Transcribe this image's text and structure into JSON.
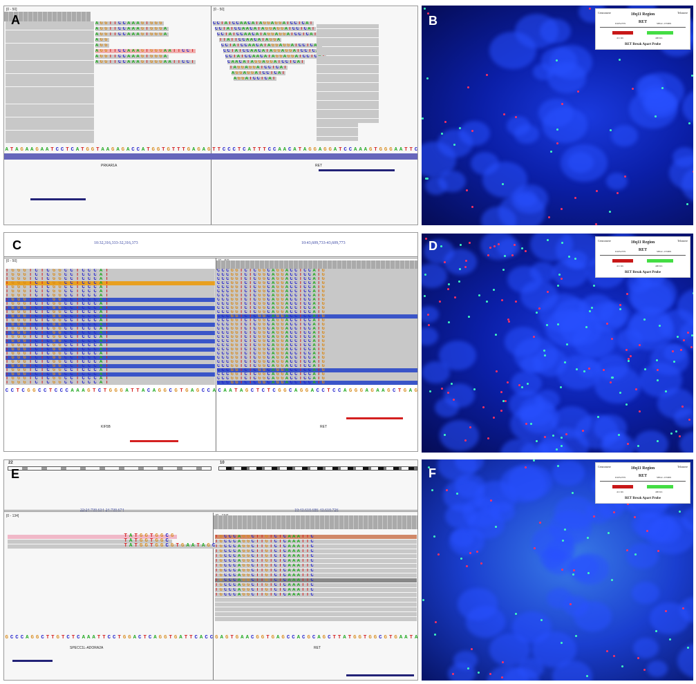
{
  "colors": {
    "A": "#1fa81f",
    "C": "#2222cc",
    "G": "#d88a1a",
    "T": "#d42020",
    "read": "#c8c8c8",
    "blue_read": "#3a55c8",
    "red_bar": "#d42020",
    "navy_bar": "#222277",
    "probe_red": "#c81818",
    "probe_green": "#44dd44",
    "fish_red": "#ff3060",
    "fish_green": "#40ffc0"
  },
  "panels": {
    "A": {
      "label": "A",
      "range_left": "[0 - 50]",
      "range_right": "[0 - 50]",
      "reference": "ATAGAAGAATCCTCATGGTAAGAGACCATGGTGTTTGAGAGTTCCCTCATTTCCAACATAGGAGGATCCAAAGTGGGAATTC",
      "gene_left": "PRKAR1A",
      "gene_right": "RET",
      "soft_left": [
        "AGGTTCCAAAGTGGG",
        "AGGTTCCAAAGTGGGA",
        "AGGTTCCAAAGTGGGA",
        "AGG",
        "AGG",
        "AGGTTCCAAAGTGGGAATTCCT",
        "AGGTTCCAAAGTGGGA",
        "AGGTTCCAAAGTGGGAATTCCT"
      ],
      "soft_right": [
        "CCTATCCAACATAGGAGGATCCTCAT",
        "CCTATCCAACATAGGAGGATCCTCAT",
        "CCTATCCAACATAGGAGGATCCTCAT",
        "TTATTCCAACATAGGA",
        "CCTATCCAACATAGGAGGATCCTCAT",
        "CCTATCCAACATAGGAGGATCCTCAT",
        "CCTATCCAACATAGGAGGATCCTCAT",
        "CAACATAGGAGGATCCTCAT",
        "TAGGAGGATCCTCAT",
        "AGGAGGATCCTCAT",
        "AGGATCCTCAT"
      ]
    },
    "B": {
      "label": "B"
    },
    "C": {
      "label": "C",
      "locus_left": "10:32,316,333-32,316,373",
      "locus_right": "10:43,609,733-43,609,773",
      "range_left": "[0 - 50]",
      "range_right": "[0 - 50]",
      "reference": "CCTCGGCCTCCCAAAGTCTGGGATTACAGGCGTGAGCCACAATAGCTCTCGGCAGGACCTCCAGGGAGAAGCTGAG",
      "gene_left": "KIF5B",
      "gene_right": "RET",
      "soft_left": "TGGGTCTCGGCCTCCCAT",
      "soft_right": "CCCGGTCTCGGCAGGACCTCCATG"
    },
    "D": {
      "label": "D"
    },
    "E": {
      "label": "E",
      "chrom_left": "22",
      "chrom_right": "10",
      "locus_left": "22:24,739,634-24,739,674",
      "locus_right": "10:43,610,686-43,610,726",
      "range_left": "[0 - 134]",
      "range_right": "[0 - 134]",
      "reference": "GCCCAGGCTTGTCTCAAATTCCTGGACTCAGGTGATTCACCGAGTGAACGGTGAGCCACGCAGCTTATGGTGGCGTGAATA",
      "gene_left": "SPECC1L-ADORA2A",
      "gene_right": "RET",
      "soft_left": [
        "TATGGTGGCG",
        "TATGGTGGC",
        "TATGGTGGCGTGAATAGC"
      ],
      "soft_right": "TGCCCAGGCTTGTCTCAAATTC"
    },
    "F": {
      "label": "F"
    }
  },
  "legend": {
    "left": "Centromere",
    "right": "Telomere",
    "region": "10q11 Region",
    "gene": "RET",
    "marker_left": "D10S2379",
    "marker_right": "SHGC-155009",
    "size_left": "411 Kb",
    "size_right": "400 Kb",
    "title": "RET Break Apart Probe"
  }
}
